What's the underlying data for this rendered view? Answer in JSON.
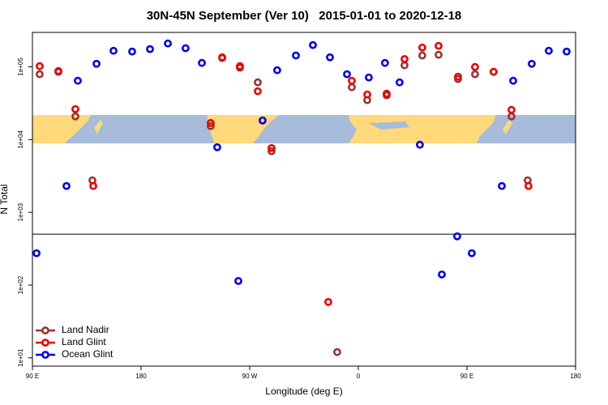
{
  "chart_data": {
    "type": "scatter",
    "title": "30N-45N September (Ver 10)   2015-01-01 to 2020-12-18",
    "x_label": "Longitude (deg E)",
    "y_label": "N Total",
    "xlim": [
      90,
      540
    ],
    "xticks": [
      {
        "value": 90,
        "label": "90 E"
      },
      {
        "value": 180,
        "label": "180"
      },
      {
        "value": 270,
        "label": "90 W"
      },
      {
        "value": 360,
        "label": "0"
      },
      {
        "value": 450,
        "label": "90 E"
      },
      {
        "value": 540,
        "label": "180"
      }
    ],
    "ylim": [
      7.7,
      297000
    ],
    "ylog": true,
    "yticks": [
      {
        "value": 10,
        "label": "1e+01"
      },
      {
        "value": 100,
        "label": "1e+02"
      },
      {
        "value": 1000,
        "label": "1e+03"
      },
      {
        "value": 10000,
        "label": "1e+04"
      },
      {
        "value": 100000,
        "label": "1e+05"
      }
    ],
    "reference_line": 500,
    "legend": "bottomleft",
    "series": [
      {
        "name": "Land Nadir",
        "color": "#993333",
        "x": [
          96.0,
          111.5,
          125.6,
          139.7,
          237.7,
          247.2,
          261.9,
          276.7,
          288.1,
          342.5,
          354.6,
          367.4,
          383.5,
          398.3,
          413.0,
          426.5,
          442.6,
          456.7,
          472.1,
          486.9,
          500.3
        ],
        "y": [
          79100,
          85300,
          20800,
          2750,
          15300,
          132000,
          97000,
          61100,
          6920,
          12.0,
          52400,
          34800,
          40600,
          105000,
          143000,
          146000,
          67800,
          79100,
          85300,
          20800,
          2750
        ]
      },
      {
        "name": "Land Glint",
        "color": "#ee0000",
        "x": [
          96.0,
          111.5,
          125.6,
          140.4,
          237.7,
          247.2,
          261.9,
          276.7,
          288.1,
          335.1,
          354.6,
          367.4,
          383.5,
          398.3,
          413.0,
          426.5,
          442.6,
          456.7,
          472.1,
          486.9,
          501.0
        ],
        "y": [
          102000,
          87500,
          26200,
          2300,
          16900,
          135000,
          102000,
          46100,
          7650,
          58.6,
          64300,
          41600,
          42700,
          128000,
          184000,
          194000,
          73100,
          99500,
          85300,
          25600,
          2300
        ]
      },
      {
        "name": "Ocean Glint",
        "color": "#0000ee",
        "x": [
          93.4,
          118.2,
          127.6,
          143.1,
          157.2,
          172.6,
          187.4,
          202.2,
          216.9,
          230.4,
          243.1,
          260.6,
          280.7,
          292.8,
          308.3,
          322.4,
          336.5,
          350.6,
          368.7,
          382.1,
          394.2,
          411.0,
          429.2,
          441.9,
          454.0,
          478.9,
          488.3,
          503.7,
          517.8,
          532.6
        ],
        "y": [
          274,
          2300,
          64300,
          110000,
          166000,
          162000,
          175000,
          209000,
          180000,
          113000,
          7850,
          114,
          18300,
          89800,
          143000,
          199000,
          135000,
          79100,
          71300,
          113000,
          61100,
          8490,
          140,
          468,
          274,
          2300,
          64300,
          110000,
          166000,
          162000
        ]
      }
    ]
  }
}
